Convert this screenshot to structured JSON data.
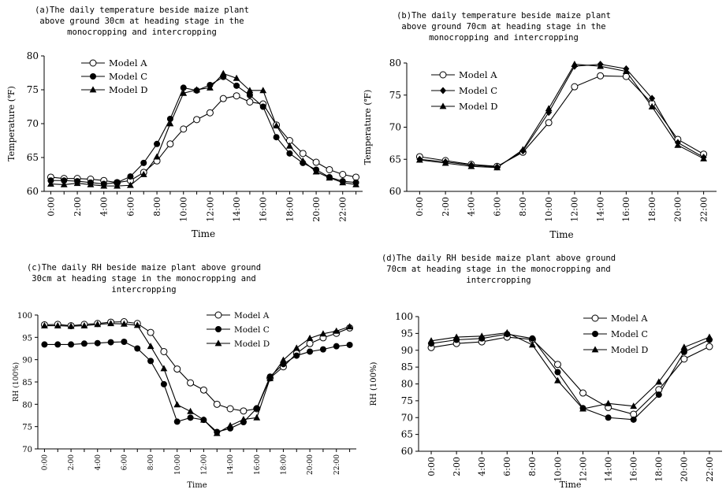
{
  "chart_data": [
    {
      "type": "line",
      "title": "(a)The daily temperature beside maize plant above ground 30cm at heading stage in the monocropping and intercropping",
      "title_lines": [
        "(a)The daily temperature beside maize plant",
        "above ground 30cm at heading stage in the",
        "monocropping and intercropping"
      ],
      "xlabel": "Time",
      "ylabel": "Temperature (℉)",
      "ylim": [
        60,
        80
      ],
      "yticks": [
        60,
        65,
        70,
        75,
        80
      ],
      "x": [
        0,
        1,
        2,
        3,
        4,
        5,
        6,
        7,
        8,
        9,
        10,
        11,
        12,
        13,
        14,
        15,
        16,
        17,
        18,
        19,
        20,
        21,
        22,
        23
      ],
      "xtick_labels": [
        "0:00",
        "2:00",
        "4:00",
        "6:00",
        "8:00",
        "10:00",
        "12:00",
        "14:00",
        "16:00",
        "18:00",
        "20:00",
        "22:00"
      ],
      "legend": "top-left",
      "series": [
        {
          "name": "Model A",
          "marker": "open-circle",
          "values": [
            62.1,
            61.9,
            61.9,
            61.8,
            61.6,
            61.3,
            61.6,
            62.8,
            64.5,
            67.0,
            69.2,
            70.6,
            71.6,
            73.7,
            74.1,
            73.2,
            72.9,
            69.8,
            67.5,
            65.6,
            64.3,
            63.2,
            62.5,
            62.1
          ]
        },
        {
          "name": "Model C",
          "marker": "filled-circle",
          "values": [
            61.6,
            61.6,
            61.5,
            61.3,
            61.1,
            61.3,
            62.2,
            64.2,
            67.0,
            70.7,
            75.3,
            74.9,
            75.7,
            76.9,
            75.6,
            74.2,
            72.5,
            68.0,
            65.6,
            64.2,
            63.2,
            62.1,
            61.5,
            61.3
          ]
        },
        {
          "name": "Model D",
          "marker": "filled-triangle",
          "values": [
            61.1,
            61.0,
            61.2,
            61.0,
            60.8,
            60.8,
            60.9,
            62.5,
            65.1,
            70.0,
            74.5,
            75.0,
            75.3,
            77.4,
            76.7,
            74.9,
            74.9,
            69.7,
            66.7,
            64.5,
            62.9,
            62.0,
            61.3,
            61.0
          ]
        }
      ]
    },
    {
      "type": "line",
      "title": "(b)The daily temperature beside maize plant above ground 70cm at heading stage in the monocropping and intercropping",
      "title_lines": [
        "(b)The daily temperature beside maize plant",
        "above ground 70cm at heading stage in the",
        "monocropping and intercropping"
      ],
      "xlabel": "Time",
      "ylabel": "Temperature (℉)",
      "ylim": [
        60,
        80
      ],
      "yticks": [
        60,
        65,
        70,
        75,
        80
      ],
      "x": [
        0,
        2,
        4,
        6,
        8,
        10,
        12,
        14,
        16,
        18,
        20,
        22
      ],
      "xtick_labels": [
        "0:00",
        "2:00",
        "4:00",
        "6:00",
        "8:00",
        "10:00",
        "12:00",
        "14:00",
        "16:00",
        "18:00",
        "20:00",
        "22:00"
      ],
      "legend": "top-left",
      "series": [
        {
          "name": "Model A",
          "marker": "open-circle",
          "values": [
            65.4,
            64.8,
            64.2,
            63.9,
            66.1,
            70.7,
            76.3,
            78.0,
            77.9,
            73.7,
            68.1,
            65.8
          ]
        },
        {
          "name": "Model C",
          "marker": "filled-diamond",
          "values": [
            65.0,
            64.6,
            64.1,
            63.8,
            66.3,
            72.3,
            79.5,
            79.8,
            79.1,
            74.5,
            67.6,
            65.3
          ]
        },
        {
          "name": "Model D",
          "marker": "filled-triangle",
          "values": [
            64.9,
            64.4,
            63.9,
            63.7,
            66.5,
            72.9,
            79.8,
            79.5,
            78.7,
            73.2,
            67.2,
            65.1
          ]
        }
      ]
    },
    {
      "type": "line",
      "title": "(c)The daily RH beside maize plant above ground 30cm at heading stage in the monocropping and intercropping",
      "title_lines": [
        "(c)The daily RH beside maize plant above ground",
        "30cm at heading stage in the monocropping and",
        "intercropping"
      ],
      "xlabel": "Time",
      "ylabel": "RH (100%)",
      "ylim": [
        70,
        100
      ],
      "yticks": [
        70,
        75,
        80,
        85,
        90,
        95,
        100
      ],
      "x": [
        0,
        1,
        2,
        3,
        4,
        5,
        6,
        7,
        8,
        9,
        10,
        11,
        12,
        13,
        14,
        15,
        16,
        17,
        18,
        19,
        20,
        21,
        22,
        23
      ],
      "xtick_labels": [
        "0:00",
        "2:00",
        "4:00",
        "6:00",
        "8:00",
        "10:00",
        "12:00",
        "14:00",
        "16:00",
        "18:00",
        "20:00",
        "22:00"
      ],
      "legend": "top-right",
      "series": [
        {
          "name": "Model A",
          "marker": "open-circle",
          "values": [
            97.8,
            97.9,
            97.6,
            97.9,
            98.1,
            98.4,
            98.5,
            98.1,
            96.1,
            91.8,
            87.9,
            84.8,
            83.2,
            80.0,
            79.0,
            78.5,
            79.0,
            85.9,
            88.4,
            91.4,
            93.6,
            94.9,
            95.9,
            97.1
          ]
        },
        {
          "name": "Model C",
          "marker": "filled-circle",
          "values": [
            93.4,
            93.4,
            93.4,
            93.6,
            93.7,
            93.9,
            94.0,
            92.5,
            89.7,
            84.5,
            76.1,
            77.0,
            76.5,
            73.8,
            74.6,
            76.0,
            79.1,
            86.2,
            89.0,
            90.9,
            91.8,
            92.3,
            93.0,
            93.3
          ]
        },
        {
          "name": "Model D",
          "marker": "filled-triangle",
          "values": [
            97.6,
            97.6,
            97.5,
            97.6,
            97.9,
            98.1,
            98.0,
            97.7,
            93.0,
            88.0,
            79.9,
            78.4,
            76.5,
            73.5,
            75.2,
            76.6,
            77.0,
            85.8,
            89.9,
            92.6,
            94.8,
            95.8,
            96.4,
            97.4
          ]
        }
      ]
    },
    {
      "type": "line",
      "title": "(d)The daily RH beside maize plant above ground 70cm at heading stage in the monocropping and intercropping",
      "title_lines": [
        "(d)The daily RH beside maize plant above ground",
        "70cm at heading stage in the monocropping and",
        "intercropping"
      ],
      "xlabel": "Time",
      "ylabel": "RH (100%)",
      "ylim": [
        60,
        100
      ],
      "yticks": [
        60,
        65,
        70,
        75,
        80,
        85,
        90,
        95,
        100
      ],
      "x": [
        0,
        2,
        4,
        6,
        8,
        10,
        12,
        14,
        16,
        18,
        20,
        22
      ],
      "xtick_labels": [
        "0:00",
        "2:00",
        "4:00",
        "6:00",
        "8:00",
        "10:00",
        "12:00",
        "14:00",
        "16:00",
        "18:00",
        "20:00",
        "22:00"
      ],
      "legend": "top-center",
      "series": [
        {
          "name": "Model A",
          "marker": "open-circle",
          "values": [
            90.8,
            92.0,
            92.5,
            93.9,
            93.2,
            85.8,
            77.3,
            73.0,
            71.0,
            78.3,
            87.4,
            91.1
          ]
        },
        {
          "name": "Model C",
          "marker": "filled-circle",
          "values": [
            92.0,
            93.1,
            93.5,
            94.8,
            93.5,
            83.5,
            72.8,
            70.0,
            69.4,
            76.8,
            89.5,
            93.1
          ]
        },
        {
          "name": "Model D",
          "marker": "filled-triangle",
          "values": [
            92.8,
            93.9,
            94.2,
            95.2,
            91.6,
            81.0,
            72.6,
            74.2,
            73.4,
            80.6,
            90.9,
            93.9
          ]
        }
      ]
    }
  ]
}
